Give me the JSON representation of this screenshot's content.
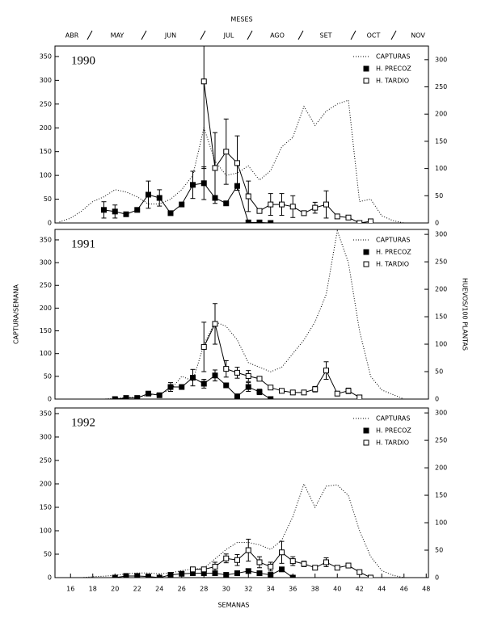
{
  "chart_data": [
    {
      "type": "line",
      "title": "1990",
      "top_label": "MESES",
      "months": [
        "ABR",
        "MAY",
        "JUN",
        "JUL",
        "AGO",
        "SET",
        "OCT",
        "NOV"
      ],
      "xlim": [
        14.6,
        48.2
      ],
      "ylim": [
        0,
        372
      ],
      "yticks": [
        0,
        50,
        100,
        150,
        200,
        250,
        300,
        350
      ],
      "y2lim": [
        0,
        325
      ],
      "y2ticks": [
        0,
        50,
        100,
        150,
        200,
        250,
        300
      ],
      "legend": "upper right",
      "series": [
        {
          "name": "CAPTURAS",
          "color": "#000000",
          "linestyle": "dotted",
          "x": [
            15,
            16,
            17,
            18,
            19,
            20,
            21,
            22,
            23,
            24,
            25,
            26,
            27,
            28,
            29,
            30,
            31,
            32,
            33,
            34,
            35,
            36,
            37,
            38,
            39,
            40,
            41,
            42,
            43,
            44,
            45,
            46
          ],
          "values": [
            2,
            10,
            25,
            45,
            55,
            70,
            65,
            55,
            40,
            40,
            50,
            70,
            100,
            200,
            130,
            100,
            105,
            120,
            90,
            110,
            160,
            180,
            245,
            205,
            235,
            250,
            258,
            45,
            50,
            15,
            5,
            0
          ]
        },
        {
          "name": "H. PRECOZ",
          "color": "#000000",
          "marker": "filled",
          "axis": "y2",
          "x": [
            19,
            20,
            21,
            22,
            23,
            24,
            25,
            26,
            27,
            28,
            29,
            30,
            31,
            32,
            33,
            34
          ],
          "values": [
            24,
            21,
            16,
            24,
            52,
            46,
            18,
            34,
            70,
            73,
            46,
            36,
            68,
            1,
            1,
            0
          ],
          "errors": [
            15,
            12,
            null,
            null,
            25,
            15,
            null,
            null,
            25,
            30,
            null,
            null,
            null,
            null,
            null,
            null
          ]
        },
        {
          "name": "H. TARDIO",
          "color": "#000000",
          "marker": "open",
          "axis": "y2",
          "x": [
            28,
            29,
            30,
            31,
            32,
            33,
            34,
            35,
            36,
            37,
            38,
            39,
            40,
            41,
            42,
            43
          ],
          "values": [
            260,
            101,
            131,
            110,
            49,
            22,
            34,
            34,
            30,
            18,
            28,
            34,
            12,
            10,
            0,
            3
          ],
          "errors": [
            160,
            65,
            60,
            50,
            28,
            null,
            20,
            20,
            20,
            null,
            10,
            25,
            null,
            null,
            null,
            null
          ]
        }
      ]
    },
    {
      "type": "line",
      "title": "1991",
      "ylabel": "CAPTURA/SEMANA",
      "y2label": "HUEVOS/100 PLANTAS",
      "xlim": [
        14.6,
        48.2
      ],
      "ylim": [
        0,
        373
      ],
      "yticks": [
        0,
        50,
        100,
        150,
        200,
        250,
        300,
        350
      ],
      "y2lim": [
        0,
        309
      ],
      "y2ticks": [
        0,
        50,
        100,
        150,
        200,
        250,
        300
      ],
      "legend": "upper right",
      "series": [
        {
          "name": "CAPTURAS",
          "color": "#000000",
          "linestyle": "dotted",
          "x": [
            15,
            16,
            17,
            18,
            19,
            20,
            21,
            22,
            23,
            24,
            25,
            26,
            27,
            28,
            29,
            30,
            31,
            32,
            33,
            34,
            35,
            36,
            37,
            38,
            39,
            40,
            41,
            42,
            43,
            44,
            45,
            46
          ],
          "values": [
            0,
            0,
            0,
            0,
            0,
            2,
            3,
            5,
            8,
            12,
            20,
            50,
            40,
            120,
            170,
            160,
            130,
            80,
            70,
            60,
            70,
            100,
            130,
            170,
            230,
            370,
            300,
            150,
            50,
            20,
            10,
            0
          ]
        },
        {
          "name": "H. PRECOZ",
          "color": "#000000",
          "marker": "filled",
          "axis": "y2",
          "x": [
            20,
            21,
            22,
            23,
            24,
            25,
            26,
            27,
            28,
            29,
            30,
            31,
            32,
            33,
            34
          ],
          "values": [
            0,
            2,
            2,
            10,
            7,
            22,
            22,
            39,
            28,
            43,
            25,
            5,
            22,
            13,
            0
          ],
          "errors": [
            null,
            null,
            null,
            null,
            null,
            8,
            null,
            15,
            8,
            10,
            null,
            null,
            8,
            5,
            null
          ]
        },
        {
          "name": "H. TARDIO",
          "color": "#000000",
          "marker": "open",
          "axis": "y2",
          "x": [
            28,
            29,
            30,
            31,
            32,
            33,
            34,
            35,
            36,
            37,
            38,
            39,
            40,
            41,
            42
          ],
          "values": [
            95,
            137,
            55,
            48,
            42,
            37,
            21,
            15,
            12,
            12,
            18,
            52,
            10,
            15,
            3
          ],
          "errors": [
            45,
            37,
            15,
            10,
            10,
            null,
            null,
            null,
            null,
            null,
            5,
            16,
            null,
            5,
            null
          ]
        }
      ]
    },
    {
      "type": "line",
      "title": "1992",
      "xlabel": "SEMANAS",
      "xlim": [
        14.6,
        48.2
      ],
      "xticks": [
        16,
        18,
        20,
        22,
        24,
        26,
        28,
        30,
        32,
        34,
        36,
        38,
        40,
        42,
        44,
        46,
        48
      ],
      "ylim": [
        0,
        362
      ],
      "yticks": [
        0,
        50,
        100,
        150,
        200,
        250,
        300,
        350
      ],
      "y2lim": [
        0,
        309
      ],
      "y2ticks": [
        0,
        50,
        100,
        150,
        200,
        250,
        300
      ],
      "legend": "upper right",
      "series": [
        {
          "name": "CAPTURAS",
          "color": "#000000",
          "linestyle": "dotted",
          "x": [
            15,
            16,
            17,
            18,
            19,
            20,
            21,
            22,
            23,
            24,
            25,
            26,
            27,
            28,
            29,
            30,
            31,
            32,
            33,
            34,
            35,
            36,
            37,
            38,
            39,
            40,
            41,
            42,
            43,
            44,
            45,
            46
          ],
          "values": [
            0,
            0,
            0,
            2,
            3,
            5,
            8,
            10,
            10,
            8,
            10,
            15,
            18,
            20,
            40,
            60,
            75,
            75,
            70,
            60,
            80,
            130,
            200,
            150,
            195,
            198,
            175,
            100,
            45,
            15,
            5,
            0
          ]
        },
        {
          "name": "H. PRECOZ",
          "color": "#000000",
          "marker": "filled",
          "axis": "y2",
          "x": [
            20,
            21,
            22,
            23,
            24,
            25,
            26,
            27,
            28,
            29,
            30,
            31,
            32,
            33,
            34,
            35,
            36
          ],
          "values": [
            0,
            3,
            3,
            2,
            0,
            5,
            7,
            8,
            8,
            8,
            5,
            8,
            12,
            8,
            5,
            15,
            0
          ]
        },
        {
          "name": "H. TARDIO",
          "color": "#000000",
          "marker": "open",
          "axis": "y2",
          "x": [
            27,
            28,
            29,
            30,
            31,
            32,
            33,
            34,
            35,
            36,
            37,
            38,
            39,
            40,
            41,
            42,
            43
          ],
          "values": [
            15,
            15,
            20,
            35,
            32,
            50,
            28,
            20,
            46,
            30,
            25,
            18,
            28,
            18,
            22,
            10,
            0
          ],
          "errors": [
            null,
            null,
            8,
            8,
            10,
            20,
            10,
            8,
            20,
            8,
            5,
            null,
            8,
            null,
            null,
            null,
            null
          ]
        }
      ]
    }
  ]
}
